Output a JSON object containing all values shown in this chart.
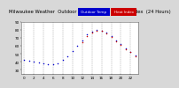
{
  "title": "Milwaukee Weather  Outdoor Temperature  vs Heat Index  (24 Hours)",
  "bg_color": "#d8d8d8",
  "plot_bg": "#ffffff",
  "blue_label": "Outdoor Temp",
  "red_label": "Heat Index",
  "blue_color": "#0000cc",
  "red_color": "#cc0000",
  "hours": [
    0,
    1,
    2,
    3,
    4,
    5,
    6,
    7,
    8,
    9,
    10,
    11,
    12,
    13,
    14,
    15,
    16,
    17,
    18,
    19,
    20,
    21,
    22,
    23
  ],
  "blue_temps": [
    42,
    41,
    40,
    39,
    38,
    37,
    37,
    38,
    42,
    47,
    53,
    60,
    67,
    74,
    78,
    80,
    79,
    76,
    72,
    67,
    62,
    57,
    52,
    48
  ],
  "red_temps": [
    null,
    null,
    null,
    null,
    null,
    null,
    null,
    null,
    null,
    null,
    null,
    null,
    65,
    72,
    76,
    79,
    79,
    75,
    71,
    66,
    61,
    56,
    52,
    47
  ],
  "ylim": [
    25,
    90
  ],
  "xlim": [
    -0.5,
    23.5
  ],
  "yticks": [
    30,
    40,
    50,
    60,
    70,
    80,
    90
  ],
  "xticks": [
    0,
    2,
    4,
    6,
    8,
    10,
    12,
    14,
    16,
    18,
    20,
    22
  ],
  "grid_color": "#999999",
  "title_fontsize": 3.8,
  "legend_fontsize": 3.0,
  "tick_fontsize": 3.0,
  "dot_size": 1.2
}
